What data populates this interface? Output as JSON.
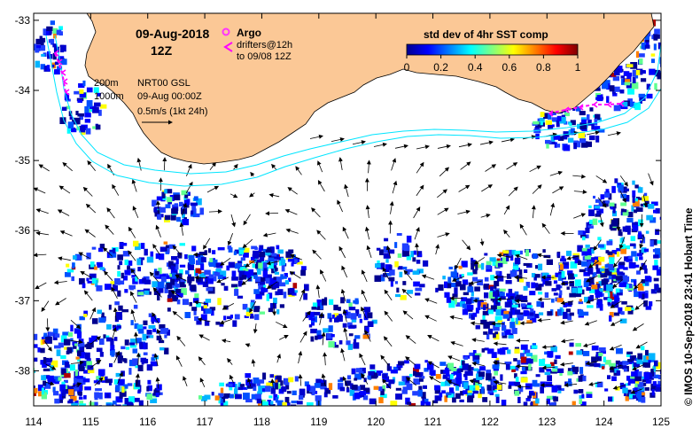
{
  "header": {
    "date": "09-Aug-2018",
    "time": "12Z"
  },
  "legend": {
    "argo_label": "Argo",
    "drifters_label": "drifters@12h",
    "drifters_to": "to 09/08 12Z",
    "argo_color": "#ff33ff",
    "drifter_color": "#ff00ff"
  },
  "colorbar": {
    "title": "std dev of 4hr SST comp",
    "ticks": [
      "0",
      "0.2",
      "0.4",
      "0.6",
      "0.8",
      "1"
    ],
    "range": [
      0,
      1
    ]
  },
  "annotations": {
    "contour_200": "200m",
    "contour_1000": "1000m",
    "product": "NRT00 GSL",
    "valid_time": "09-Aug 00:00Z",
    "vector_scale": "0.5m/s (1kt 24h)"
  },
  "credit": "© IMOS 10-Sep-2018 23:41 Hobart Time",
  "axes": {
    "lon_ticks": [
      "114",
      "115",
      "116",
      "117",
      "118",
      "119",
      "120",
      "121",
      "122",
      "123",
      "124",
      "125"
    ],
    "lat_ticks": [
      "-33",
      "-34",
      "-35",
      "-36",
      "-37",
      "-38"
    ],
    "lon_range": [
      114,
      125
    ],
    "lat_range": [
      -38.5,
      -32.9
    ]
  },
  "colors": {
    "land": "#fbc896",
    "isobath": "#00e5ff",
    "ocean": "#ffffff"
  }
}
